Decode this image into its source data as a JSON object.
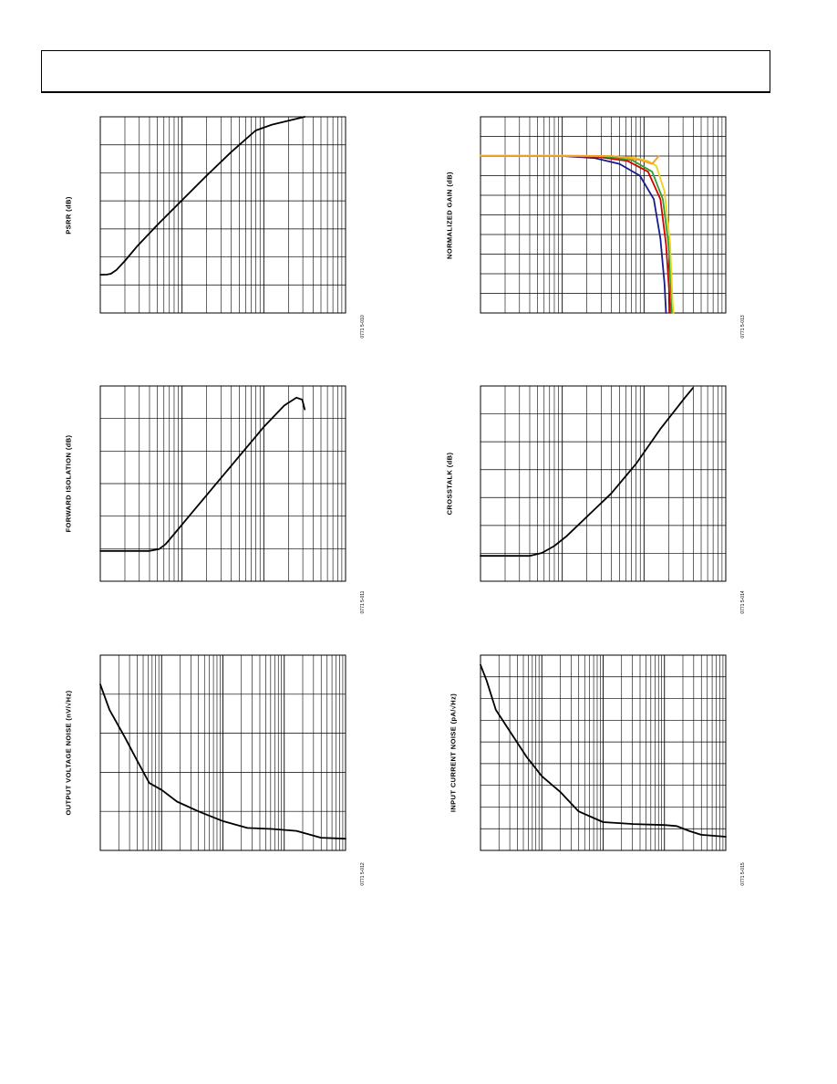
{
  "page": {
    "header_text": ""
  },
  "chart_data": [
    {
      "id": "psrr",
      "type": "line",
      "x_scale": "log",
      "ylabel": "PSRR (dB)",
      "fig_id": "0771 5-010",
      "x_decades": 3,
      "y_divisions": 7,
      "grid": true,
      "series": [
        {
          "color": "#000000",
          "points": [
            [
              0.0,
              0.195
            ],
            [
              0.08,
              0.196
            ],
            [
              0.13,
              0.2
            ],
            [
              0.2,
              0.22
            ],
            [
              0.3,
              0.265
            ],
            [
              0.45,
              0.34
            ],
            [
              0.7,
              0.45
            ],
            [
              1.0,
              0.575
            ],
            [
              1.3,
              0.7
            ],
            [
              1.6,
              0.82
            ],
            [
              1.9,
              0.93
            ],
            [
              2.1,
              0.96
            ],
            [
              2.5,
              1.0
            ]
          ]
        }
      ]
    },
    {
      "id": "normalized-gain",
      "type": "line",
      "x_scale": "log",
      "ylabel": "NORMALIZED GAIN (dB)",
      "fig_id": "0771 5-013",
      "x_decades": 3,
      "y_divisions": 10,
      "grid": true,
      "series": [
        {
          "color": "#1a1a8c",
          "points": [
            [
              0.0,
              0.8
            ],
            [
              1.0,
              0.8
            ],
            [
              1.4,
              0.79
            ],
            [
              1.7,
              0.76
            ],
            [
              1.95,
              0.7
            ],
            [
              2.12,
              0.58
            ],
            [
              2.2,
              0.38
            ],
            [
              2.25,
              0.15
            ],
            [
              2.27,
              0.0
            ]
          ]
        },
        {
          "color": "#d40000",
          "points": [
            [
              0.0,
              0.8
            ],
            [
              1.0,
              0.8
            ],
            [
              1.45,
              0.795
            ],
            [
              1.8,
              0.775
            ],
            [
              2.05,
              0.72
            ],
            [
              2.2,
              0.58
            ],
            [
              2.27,
              0.35
            ],
            [
              2.31,
              0.1
            ],
            [
              2.32,
              0.0
            ]
          ]
        },
        {
          "color": "#2fa02f",
          "points": [
            [
              0.0,
              0.8
            ],
            [
              1.0,
              0.8
            ],
            [
              1.5,
              0.798
            ],
            [
              1.85,
              0.78
            ],
            [
              2.1,
              0.72
            ],
            [
              2.23,
              0.58
            ],
            [
              2.3,
              0.35
            ],
            [
              2.33,
              0.1
            ],
            [
              2.34,
              0.0
            ]
          ]
        },
        {
          "color": "#f0d020",
          "points": [
            [
              0.0,
              0.803
            ],
            [
              1.0,
              0.803
            ],
            [
              1.6,
              0.8
            ],
            [
              1.9,
              0.79
            ],
            [
              2.05,
              0.775
            ],
            [
              2.15,
              0.75
            ],
            [
              2.25,
              0.62
            ],
            [
              2.32,
              0.35
            ],
            [
              2.35,
              0.05
            ],
            [
              2.36,
              0.0
            ]
          ]
        },
        {
          "color": "#f0a030",
          "points": [
            [
              0.0,
              0.8
            ],
            [
              1.2,
              0.8
            ],
            [
              1.6,
              0.8
            ],
            [
              1.95,
              0.78
            ],
            [
              2.1,
              0.76
            ],
            [
              2.18,
              0.8
            ]
          ]
        }
      ]
    },
    {
      "id": "forward-isolation",
      "type": "line",
      "x_scale": "log",
      "ylabel": "FORWARD ISOLATION (dB)",
      "fig_id": "0771 5-011",
      "x_decades": 3,
      "y_divisions": 6,
      "grid": true,
      "series": [
        {
          "color": "#000000",
          "points": [
            [
              0.0,
              0.155
            ],
            [
              0.6,
              0.155
            ],
            [
              0.72,
              0.165
            ],
            [
              0.8,
              0.19
            ],
            [
              0.92,
              0.25
            ],
            [
              1.1,
              0.34
            ],
            [
              1.4,
              0.49
            ],
            [
              1.7,
              0.64
            ],
            [
              2.0,
              0.79
            ],
            [
              2.25,
              0.9
            ],
            [
              2.4,
              0.94
            ],
            [
              2.47,
              0.93
            ],
            [
              2.5,
              0.88
            ]
          ]
        }
      ]
    },
    {
      "id": "crosstalk",
      "type": "line",
      "x_scale": "log",
      "ylabel": "CROSSTALK (dB)",
      "fig_id": "0771 5-014",
      "x_decades": 3,
      "y_divisions": 7,
      "grid": true,
      "series": [
        {
          "color": "#000000",
          "points": [
            [
              0.0,
              0.13
            ],
            [
              0.6,
              0.13
            ],
            [
              0.75,
              0.145
            ],
            [
              0.9,
              0.18
            ],
            [
              1.05,
              0.23
            ],
            [
              1.3,
              0.33
            ],
            [
              1.6,
              0.45
            ],
            [
              1.9,
              0.6
            ],
            [
              2.2,
              0.78
            ],
            [
              2.5,
              0.94
            ],
            [
              2.6,
              0.99
            ]
          ]
        }
      ]
    },
    {
      "id": "output-voltage-noise",
      "type": "line",
      "x_scale": "log",
      "ylabel": "OUTPUT VOLTAGE NOISE (nV/√Hz)",
      "fig_id": "0771 5-012",
      "x_decades": 4,
      "y_divisions": 5,
      "grid": true,
      "series": [
        {
          "color": "#000000",
          "points": [
            [
              0.0,
              0.85
            ],
            [
              0.15,
              0.72
            ],
            [
              0.4,
              0.58
            ],
            [
              0.6,
              0.46
            ],
            [
              0.8,
              0.345
            ],
            [
              1.0,
              0.31
            ],
            [
              1.25,
              0.25
            ],
            [
              1.6,
              0.2
            ],
            [
              2.0,
              0.15
            ],
            [
              2.4,
              0.115
            ],
            [
              2.8,
              0.11
            ],
            [
              3.2,
              0.1
            ],
            [
              3.6,
              0.065
            ],
            [
              4.0,
              0.06
            ]
          ]
        }
      ]
    },
    {
      "id": "input-current-noise",
      "type": "line",
      "x_scale": "log",
      "ylabel": "INPUT CURRENT NOISE (pA/√Hz)",
      "fig_id": "0771 5-015",
      "x_decades": 4,
      "y_divisions": 9,
      "grid": true,
      "series": [
        {
          "color": "#000000",
          "points": [
            [
              0.0,
              0.95
            ],
            [
              0.1,
              0.87
            ],
            [
              0.25,
              0.72
            ],
            [
              0.5,
              0.6
            ],
            [
              0.75,
              0.48
            ],
            [
              1.0,
              0.38
            ],
            [
              1.3,
              0.3
            ],
            [
              1.6,
              0.2
            ],
            [
              2.0,
              0.145
            ],
            [
              2.5,
              0.135
            ],
            [
              3.0,
              0.13
            ],
            [
              3.2,
              0.125
            ],
            [
              3.4,
              0.1
            ],
            [
              3.6,
              0.08
            ],
            [
              4.0,
              0.07
            ]
          ]
        }
      ]
    }
  ]
}
